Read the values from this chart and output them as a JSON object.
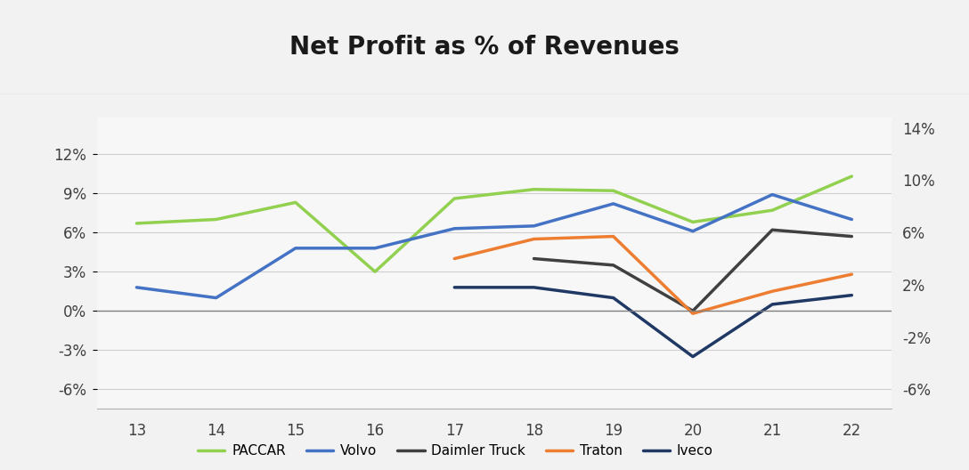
{
  "title": "Net Profit as % of Revenues",
  "years": [
    13,
    14,
    15,
    16,
    17,
    18,
    19,
    20,
    21,
    22
  ],
  "series": {
    "PACCAR": [
      0.067,
      0.07,
      0.083,
      0.03,
      0.086,
      0.093,
      0.092,
      0.068,
      0.077,
      0.103
    ],
    "Volvo": [
      0.018,
      0.01,
      0.048,
      0.048,
      0.063,
      0.065,
      0.082,
      0.061,
      0.089,
      0.07
    ],
    "Daimler Truck": [
      null,
      null,
      null,
      null,
      null,
      0.04,
      0.035,
      0.0,
      0.062,
      0.057
    ],
    "Traton": [
      null,
      null,
      null,
      null,
      0.04,
      0.055,
      0.057,
      -0.002,
      0.015,
      0.028
    ],
    "Iveco": [
      null,
      null,
      null,
      null,
      0.018,
      0.018,
      0.01,
      -0.035,
      0.005,
      0.012
    ]
  },
  "colors": {
    "PACCAR": "#92d050",
    "Volvo": "#4472c4",
    "Daimler Truck": "#404040",
    "Traton": "#ed7d31",
    "Iveco": "#1f3864"
  },
  "ylim": [
    -0.075,
    0.148
  ],
  "yticks_left": [
    -0.06,
    -0.03,
    0.0,
    0.03,
    0.06,
    0.09,
    0.12
  ],
  "yticks_right": [
    -0.06,
    -0.02,
    0.02,
    0.06,
    0.1,
    0.14
  ],
  "fig_bg_color": "#f2f2f2",
  "plot_bg_color": "#f7f7f7",
  "title_area_color": "#ffffff",
  "grid_color": "#d0d0d0",
  "line_width": 2.5,
  "title_fontsize": 20,
  "legend_fontsize": 11,
  "tick_fontsize": 12,
  "tick_color": "#404040"
}
